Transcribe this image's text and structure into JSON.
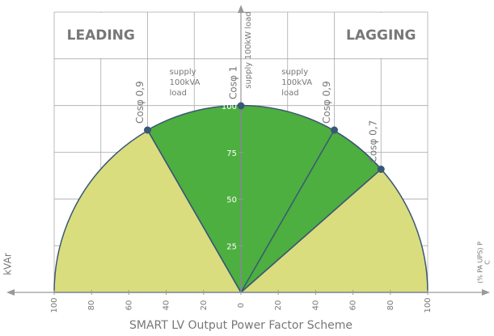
{
  "chart_data": {
    "type": "power-factor",
    "title": "SMART LV Output Power Factor Scheme",
    "xlim": [
      -100,
      100
    ],
    "ylim": [
      0,
      150
    ],
    "xticks": [
      {
        "value": -100,
        "label": "100"
      },
      {
        "value": -80,
        "label": "80"
      },
      {
        "value": -60,
        "label": "60"
      },
      {
        "value": -40,
        "label": "40"
      },
      {
        "value": -20,
        "label": "20"
      },
      0,
      20,
      40,
      60,
      80,
      100
    ],
    "yticks": [
      25,
      50,
      75,
      100
    ],
    "x_label": "kVAr",
    "y2_label": [
      "(% PA UPS) P",
      "C"
    ],
    "regions": [
      "LEADING",
      "LAGGING"
    ],
    "axis_note": "supply 100kW load",
    "notes": [
      [
        "supply",
        "100kVA",
        "load"
      ],
      [
        "supply",
        "100kVA",
        "load"
      ]
    ],
    "points": [
      {
        "label": "Cosφ 0,9",
        "x": -50,
        "y": 87
      },
      {
        "label": "Cosφ 1",
        "x": 0,
        "y": 100
      },
      {
        "label": "Cosφ 0,9",
        "x": 50,
        "y": 87
      },
      {
        "label": "Cosφ 0,7",
        "x": 75,
        "y": 66
      }
    ],
    "colors": {
      "outer": "#d9dd7e",
      "inner": "#4daf3f",
      "line": "#3b5776"
    }
  }
}
